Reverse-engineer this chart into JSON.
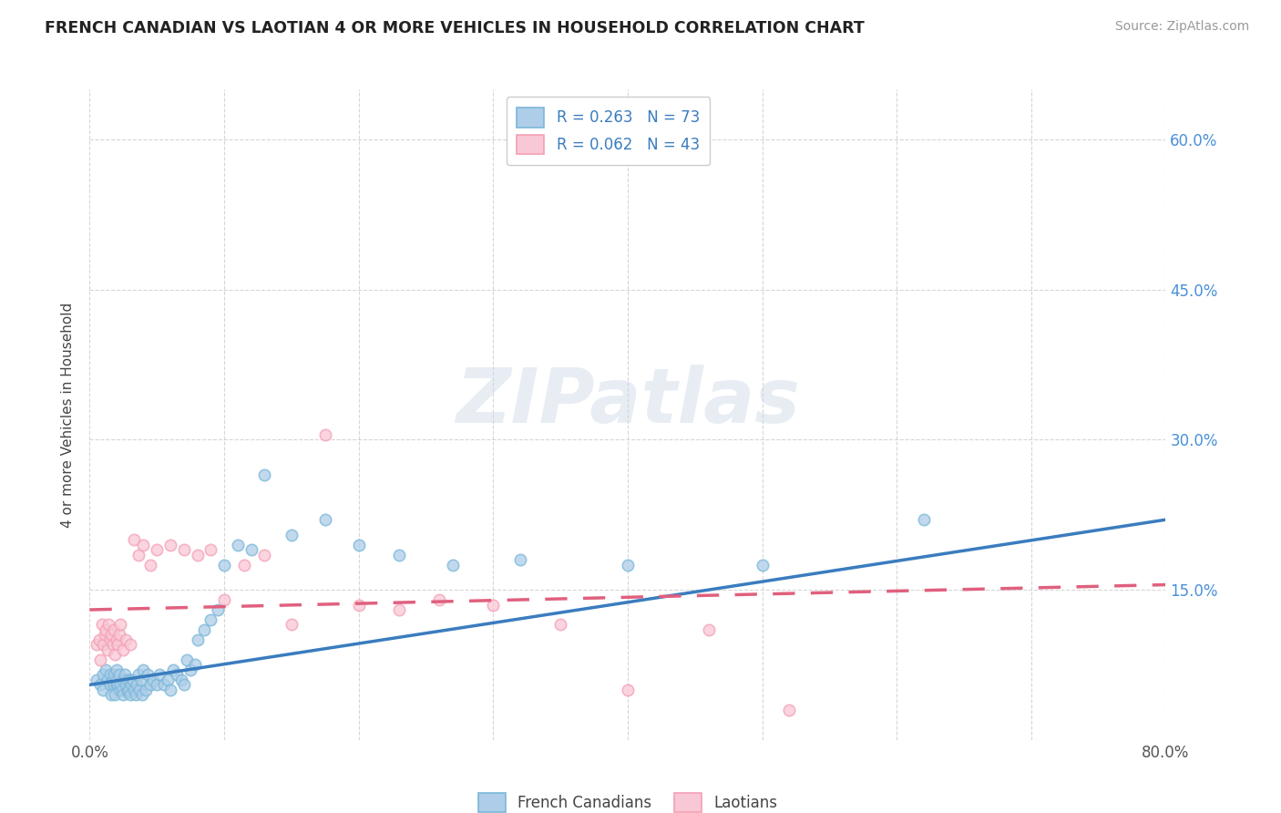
{
  "title": "FRENCH CANADIAN VS LAOTIAN 4 OR MORE VEHICLES IN HOUSEHOLD CORRELATION CHART",
  "source": "Source: ZipAtlas.com",
  "ylabel": "4 or more Vehicles in Household",
  "xlim": [
    0.0,
    0.8
  ],
  "ylim": [
    0.0,
    0.65
  ],
  "legend_label1": "French Canadians",
  "legend_label2": "Laotians",
  "R1": 0.263,
  "N1": 73,
  "R2": 0.062,
  "N2": 43,
  "blue_color": "#7ab8d9",
  "blue_fill": "#aecde8",
  "pink_color": "#f4a0b5",
  "pink_fill": "#f9c8d6",
  "line_blue": "#3a7cbf",
  "line_pink": "#e0607e",
  "watermark": "ZIPatlas",
  "blue_scatter_x": [
    0.005,
    0.008,
    0.01,
    0.01,
    0.012,
    0.013,
    0.015,
    0.015,
    0.016,
    0.017,
    0.018,
    0.018,
    0.019,
    0.02,
    0.02,
    0.02,
    0.021,
    0.022,
    0.022,
    0.023,
    0.024,
    0.025,
    0.025,
    0.026,
    0.027,
    0.028,
    0.028,
    0.029,
    0.03,
    0.03,
    0.031,
    0.032,
    0.033,
    0.034,
    0.035,
    0.036,
    0.037,
    0.038,
    0.039,
    0.04,
    0.042,
    0.043,
    0.045,
    0.047,
    0.05,
    0.052,
    0.055,
    0.058,
    0.06,
    0.062,
    0.065,
    0.068,
    0.07,
    0.072,
    0.075,
    0.078,
    0.08,
    0.085,
    0.09,
    0.095,
    0.1,
    0.11,
    0.12,
    0.13,
    0.15,
    0.175,
    0.2,
    0.23,
    0.27,
    0.32,
    0.4,
    0.5,
    0.62
  ],
  "blue_scatter_y": [
    0.06,
    0.055,
    0.05,
    0.065,
    0.07,
    0.06,
    0.055,
    0.065,
    0.045,
    0.06,
    0.055,
    0.065,
    0.045,
    0.055,
    0.06,
    0.07,
    0.055,
    0.05,
    0.065,
    0.055,
    0.05,
    0.06,
    0.045,
    0.065,
    0.055,
    0.048,
    0.06,
    0.05,
    0.045,
    0.06,
    0.055,
    0.06,
    0.05,
    0.045,
    0.055,
    0.065,
    0.05,
    0.06,
    0.045,
    0.07,
    0.05,
    0.065,
    0.055,
    0.06,
    0.055,
    0.065,
    0.055,
    0.06,
    0.05,
    0.07,
    0.065,
    0.06,
    0.055,
    0.08,
    0.07,
    0.075,
    0.1,
    0.11,
    0.12,
    0.13,
    0.175,
    0.195,
    0.19,
    0.265,
    0.205,
    0.22,
    0.195,
    0.185,
    0.175,
    0.18,
    0.175,
    0.175,
    0.22
  ],
  "pink_scatter_x": [
    0.005,
    0.007,
    0.008,
    0.009,
    0.01,
    0.011,
    0.012,
    0.013,
    0.014,
    0.015,
    0.016,
    0.017,
    0.018,
    0.019,
    0.02,
    0.021,
    0.022,
    0.023,
    0.025,
    0.027,
    0.03,
    0.033,
    0.036,
    0.04,
    0.045,
    0.05,
    0.06,
    0.07,
    0.08,
    0.09,
    0.1,
    0.115,
    0.13,
    0.15,
    0.175,
    0.2,
    0.23,
    0.26,
    0.3,
    0.35,
    0.4,
    0.46,
    0.52
  ],
  "pink_scatter_y": [
    0.095,
    0.1,
    0.08,
    0.115,
    0.095,
    0.105,
    0.11,
    0.09,
    0.115,
    0.1,
    0.105,
    0.095,
    0.11,
    0.085,
    0.1,
    0.095,
    0.105,
    0.115,
    0.09,
    0.1,
    0.095,
    0.2,
    0.185,
    0.195,
    0.175,
    0.19,
    0.195,
    0.19,
    0.185,
    0.19,
    0.14,
    0.175,
    0.185,
    0.115,
    0.305,
    0.135,
    0.13,
    0.14,
    0.135,
    0.115,
    0.05,
    0.11,
    0.03
  ],
  "blue_line_x0": 0.0,
  "blue_line_y0": 0.055,
  "blue_line_x1": 0.8,
  "blue_line_y1": 0.22,
  "pink_line_x0": 0.0,
  "pink_line_y0": 0.13,
  "pink_line_x1": 0.8,
  "pink_line_y1": 0.155
}
